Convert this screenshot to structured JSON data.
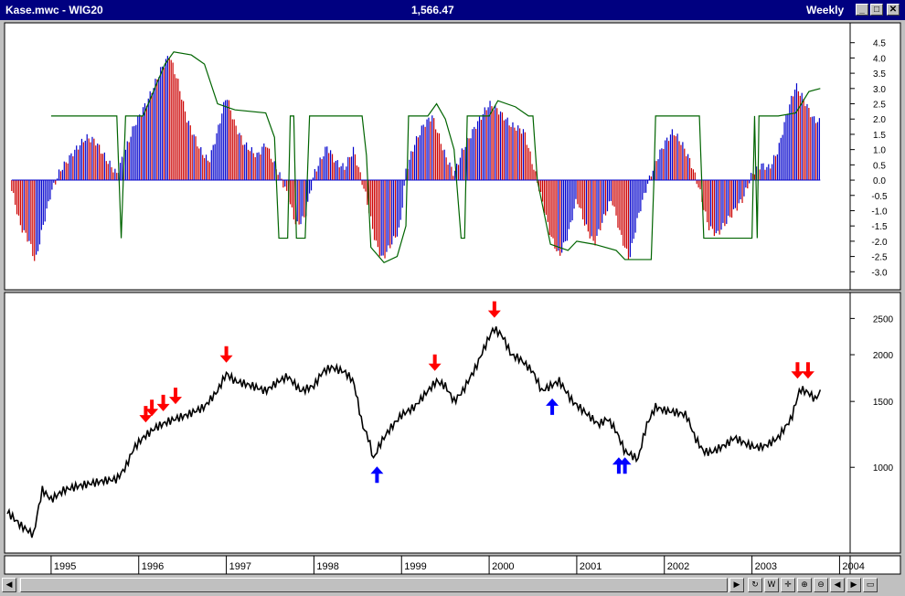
{
  "window": {
    "title_left": "Kase.mwc - WIG20",
    "title_center": "1,566.47",
    "title_right": "Weekly",
    "buttons": {
      "minimize": "_",
      "maximize": "□",
      "close": "✕"
    }
  },
  "chart_data": [
    {
      "type": "bar",
      "pane": "indicator",
      "y_ticks": [
        4.5,
        4.0,
        3.5,
        3.0,
        2.5,
        2.0,
        1.5,
        1.0,
        0.5,
        0.0,
        -0.5,
        -1.0,
        -1.5,
        -2.0,
        -2.5,
        -3.0
      ],
      "ylim": [
        -3.5,
        5.0
      ],
      "series": [
        {
          "name": "",
          "color_up": "#0000cc",
          "color_down": "#cc0000",
          "keypoints": [
            [
              1994.55,
              -0.3
            ],
            [
              1994.65,
              -1.5
            ],
            [
              1994.75,
              -2.0
            ],
            [
              1994.82,
              -2.7
            ],
            [
              1994.9,
              -1.6
            ],
            [
              1995.0,
              -0.4
            ],
            [
              1995.1,
              0.3
            ],
            [
              1995.25,
              0.9
            ],
            [
              1995.4,
              1.4
            ],
            [
              1995.5,
              1.3
            ],
            [
              1995.65,
              0.6
            ],
            [
              1995.75,
              0.2
            ],
            [
              1995.85,
              1.0
            ],
            [
              1995.95,
              1.8
            ],
            [
              1996.1,
              2.6
            ],
            [
              1996.25,
              3.6
            ],
            [
              1996.35,
              4.1
            ],
            [
              1996.45,
              3.2
            ],
            [
              1996.55,
              2.0
            ],
            [
              1996.7,
              1.0
            ],
            [
              1996.8,
              0.6
            ],
            [
              1996.9,
              1.6
            ],
            [
              1997.0,
              2.8
            ],
            [
              1997.1,
              1.8
            ],
            [
              1997.2,
              1.2
            ],
            [
              1997.35,
              0.8
            ],
            [
              1997.45,
              1.2
            ],
            [
              1997.55,
              0.5
            ],
            [
              1997.62,
              0.1
            ],
            [
              1997.7,
              -0.5
            ],
            [
              1997.8,
              -1.5
            ],
            [
              1997.9,
              -1.2
            ],
            [
              1998.0,
              0.2
            ],
            [
              1998.15,
              1.1
            ],
            [
              1998.25,
              0.6
            ],
            [
              1998.35,
              0.4
            ],
            [
              1998.45,
              1.0
            ],
            [
              1998.5,
              0.5
            ],
            [
              1998.6,
              -0.6
            ],
            [
              1998.7,
              -2.0
            ],
            [
              1998.78,
              -2.6
            ],
            [
              1998.88,
              -2.1
            ],
            [
              1998.98,
              -1.6
            ],
            [
              1999.05,
              0.3
            ],
            [
              1999.15,
              1.2
            ],
            [
              1999.25,
              1.8
            ],
            [
              1999.35,
              2.1
            ],
            [
              1999.42,
              1.5
            ],
            [
              1999.5,
              0.8
            ],
            [
              1999.6,
              0.2
            ],
            [
              1999.7,
              1.0
            ],
            [
              1999.85,
              1.8
            ],
            [
              2000.0,
              2.5
            ],
            [
              2000.1,
              2.3
            ],
            [
              2000.25,
              1.8
            ],
            [
              2000.4,
              1.6
            ],
            [
              2000.5,
              0.5
            ],
            [
              2000.6,
              -0.6
            ],
            [
              2000.7,
              -1.8
            ],
            [
              2000.8,
              -2.5
            ],
            [
              2000.9,
              -1.8
            ],
            [
              2001.0,
              -0.6
            ],
            [
              2001.1,
              -1.5
            ],
            [
              2001.2,
              -2.1
            ],
            [
              2001.3,
              -1.3
            ],
            [
              2001.4,
              -0.6
            ],
            [
              2001.5,
              -1.8
            ],
            [
              2001.6,
              -2.6
            ],
            [
              2001.7,
              -1.2
            ],
            [
              2001.8,
              -0.2
            ],
            [
              2001.9,
              0.6
            ],
            [
              2002.0,
              1.2
            ],
            [
              2002.1,
              1.6
            ],
            [
              2002.2,
              1.2
            ],
            [
              2002.3,
              0.6
            ],
            [
              2002.4,
              -0.3
            ],
            [
              2002.5,
              -1.5
            ],
            [
              2002.6,
              -1.8
            ],
            [
              2002.7,
              -1.4
            ],
            [
              2002.8,
              -1.0
            ],
            [
              2002.9,
              -0.6
            ],
            [
              2003.0,
              0.2
            ],
            [
              2003.1,
              0.5
            ],
            [
              2003.2,
              0.4
            ],
            [
              2003.3,
              1.0
            ],
            [
              2003.4,
              2.2
            ],
            [
              2003.5,
              3.1
            ],
            [
              2003.6,
              2.6
            ],
            [
              2003.7,
              2.0
            ],
            [
              2003.78,
              1.9
            ]
          ]
        }
      ],
      "overlay": {
        "name": "",
        "color": "#006400",
        "keypoints": [
          [
            1995.0,
            2.1
          ],
          [
            1995.75,
            2.1
          ],
          [
            1995.8,
            -1.9
          ],
          [
            1995.85,
            2.1
          ],
          [
            1996.05,
            2.1
          ],
          [
            1996.3,
            3.8
          ],
          [
            1996.4,
            4.2
          ],
          [
            1996.6,
            4.1
          ],
          [
            1996.75,
            3.8
          ],
          [
            1996.9,
            2.5
          ],
          [
            1997.1,
            2.3
          ],
          [
            1997.45,
            2.2
          ],
          [
            1997.55,
            1.4
          ],
          [
            1997.6,
            -1.9
          ],
          [
            1997.7,
            -1.9
          ],
          [
            1997.73,
            2.1
          ],
          [
            1997.77,
            2.1
          ],
          [
            1997.8,
            -1.9
          ],
          [
            1997.9,
            -1.9
          ],
          [
            1997.95,
            2.1
          ],
          [
            1998.55,
            2.1
          ],
          [
            1998.6,
            0.8
          ],
          [
            1998.65,
            -2.2
          ],
          [
            1998.8,
            -2.7
          ],
          [
            1998.95,
            -2.5
          ],
          [
            1999.05,
            -1.5
          ],
          [
            1999.08,
            2.1
          ],
          [
            1999.3,
            2.1
          ],
          [
            1999.4,
            2.5
          ],
          [
            1999.5,
            2.0
          ],
          [
            1999.6,
            1.0
          ],
          [
            1999.68,
            -1.9
          ],
          [
            1999.72,
            -1.9
          ],
          [
            1999.75,
            2.1
          ],
          [
            2000.0,
            2.1
          ],
          [
            2000.1,
            2.6
          ],
          [
            2000.3,
            2.4
          ],
          [
            2000.45,
            2.1
          ],
          [
            2000.5,
            2.1
          ],
          [
            2000.55,
            0.0
          ],
          [
            2000.7,
            -2.1
          ],
          [
            2000.9,
            -2.3
          ],
          [
            2001.0,
            -2.0
          ],
          [
            2001.2,
            -2.1
          ],
          [
            2001.45,
            -2.3
          ],
          [
            2001.55,
            -2.6
          ],
          [
            2001.85,
            -2.6
          ],
          [
            2001.88,
            -0.1
          ],
          [
            2001.9,
            2.1
          ],
          [
            2002.4,
            2.1
          ],
          [
            2002.45,
            -1.9
          ],
          [
            2003.0,
            -1.9
          ],
          [
            2003.03,
            2.1
          ],
          [
            2003.06,
            -1.9
          ],
          [
            2003.08,
            2.1
          ],
          [
            2003.3,
            2.1
          ],
          [
            2003.5,
            2.2
          ],
          [
            2003.65,
            2.9
          ],
          [
            2003.78,
            3.0
          ]
        ]
      }
    },
    {
      "type": "line",
      "pane": "price",
      "scale": "log",
      "y_ticks": [
        2500,
        2000,
        1500,
        1000
      ],
      "ylim": [
        600,
        2900
      ],
      "x_ticks": [
        "1995",
        "1996",
        "1997",
        "1998",
        "1999",
        "2000",
        "2001",
        "2002",
        "2003",
        "2004"
      ],
      "xlim": [
        1994.5,
        2004.1
      ],
      "series": [
        {
          "name": "",
          "color": "#000000",
          "keypoints": [
            [
              1994.5,
              760
            ],
            [
              1994.65,
              700
            ],
            [
              1994.8,
              660
            ],
            [
              1994.9,
              870
            ],
            [
              1995.0,
              820
            ],
            [
              1995.15,
              870
            ],
            [
              1995.3,
              890
            ],
            [
              1995.5,
              910
            ],
            [
              1995.6,
              920
            ],
            [
              1995.75,
              930
            ],
            [
              1995.85,
              1000
            ],
            [
              1995.95,
              1130
            ],
            [
              1996.05,
              1200
            ],
            [
              1996.2,
              1280
            ],
            [
              1996.35,
              1330
            ],
            [
              1996.55,
              1380
            ],
            [
              1996.75,
              1450
            ],
            [
              1996.9,
              1600
            ],
            [
              1997.0,
              1780
            ],
            [
              1997.1,
              1700
            ],
            [
              1997.3,
              1650
            ],
            [
              1997.45,
              1600
            ],
            [
              1997.6,
              1700
            ],
            [
              1997.7,
              1750
            ],
            [
              1997.85,
              1600
            ],
            [
              1998.0,
              1650
            ],
            [
              1998.1,
              1800
            ],
            [
              1998.2,
              1850
            ],
            [
              1998.35,
              1800
            ],
            [
              1998.45,
              1700
            ],
            [
              1998.55,
              1300
            ],
            [
              1998.62,
              1200
            ],
            [
              1998.68,
              1050
            ],
            [
              1998.75,
              1150
            ],
            [
              1998.85,
              1250
            ],
            [
              1999.0,
              1380
            ],
            [
              1999.15,
              1450
            ],
            [
              1999.3,
              1600
            ],
            [
              1999.4,
              1700
            ],
            [
              1999.5,
              1650
            ],
            [
              1999.6,
              1500
            ],
            [
              1999.7,
              1600
            ],
            [
              1999.85,
              1850
            ],
            [
              1999.95,
              2100
            ],
            [
              2000.05,
              2350
            ],
            [
              2000.15,
              2250
            ],
            [
              2000.25,
              2000
            ],
            [
              2000.35,
              1950
            ],
            [
              2000.5,
              1800
            ],
            [
              2000.6,
              1600
            ],
            [
              2000.7,
              1650
            ],
            [
              2000.8,
              1700
            ],
            [
              2000.95,
              1500
            ],
            [
              2001.1,
              1400
            ],
            [
              2001.25,
              1300
            ],
            [
              2001.35,
              1350
            ],
            [
              2001.45,
              1250
            ],
            [
              2001.55,
              1100
            ],
            [
              2001.62,
              1080
            ],
            [
              2001.7,
              1050
            ],
            [
              2001.8,
              1300
            ],
            [
              2001.9,
              1450
            ],
            [
              2002.0,
              1420
            ],
            [
              2002.15,
              1400
            ],
            [
              2002.25,
              1380
            ],
            [
              2002.35,
              1200
            ],
            [
              2002.45,
              1100
            ],
            [
              2002.55,
              1100
            ],
            [
              2002.7,
              1150
            ],
            [
              2002.8,
              1200
            ],
            [
              2002.95,
              1150
            ],
            [
              2003.05,
              1130
            ],
            [
              2003.15,
              1140
            ],
            [
              2003.3,
              1200
            ],
            [
              2003.45,
              1350
            ],
            [
              2003.55,
              1620
            ],
            [
              2003.65,
              1580
            ],
            [
              2003.72,
              1520
            ],
            [
              2003.78,
              1590
            ]
          ]
        }
      ],
      "signals": [
        {
          "type": "sell",
          "x": 1996.08,
          "y": 1260
        },
        {
          "type": "sell",
          "x": 1996.15,
          "y": 1310
        },
        {
          "type": "sell",
          "x": 1996.28,
          "y": 1350
        },
        {
          "type": "sell",
          "x": 1996.42,
          "y": 1410
        },
        {
          "type": "sell",
          "x": 1997.0,
          "y": 1820
        },
        {
          "type": "buy",
          "x": 1998.72,
          "y": 1040
        },
        {
          "type": "sell",
          "x": 1999.38,
          "y": 1730
        },
        {
          "type": "sell",
          "x": 2000.06,
          "y": 2400
        },
        {
          "type": "buy",
          "x": 2000.72,
          "y": 1580
        },
        {
          "type": "buy",
          "x": 2001.48,
          "y": 1100
        },
        {
          "type": "buy",
          "x": 2001.55,
          "y": 1100
        },
        {
          "type": "sell",
          "x": 2003.52,
          "y": 1650
        },
        {
          "type": "sell",
          "x": 2003.64,
          "y": 1650
        }
      ]
    }
  ]
}
